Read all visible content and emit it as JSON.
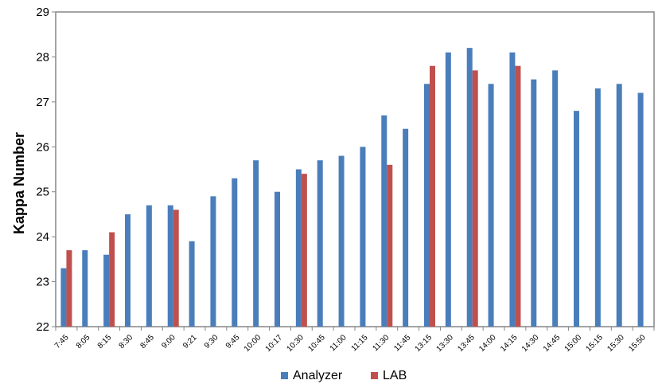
{
  "chart_data": {
    "type": "bar",
    "ylabel": "Kappa Number",
    "xlabel": "",
    "ylim": [
      22,
      29
    ],
    "yticks": [
      22,
      23,
      24,
      25,
      26,
      27,
      28,
      29
    ],
    "grid": false,
    "legend_position": "bottom",
    "categories": [
      "7:45",
      "8:05",
      "8:15",
      "8:30",
      "8:45",
      "9:00",
      "9:21",
      "9:30",
      "9:45",
      "10:00",
      "10:17",
      "10:30",
      "10:45",
      "11:00",
      "11:15",
      "11:30",
      "11:45",
      "13:15",
      "13:30",
      "13:45",
      "14:00",
      "14:15",
      "14:30",
      "14:45",
      "15:00",
      "15:15",
      "15:30",
      "15:50"
    ],
    "series": [
      {
        "name": "Analyzer",
        "color": "#4a7ebb",
        "values": [
          23.3,
          23.7,
          23.6,
          24.5,
          24.7,
          24.7,
          23.9,
          24.9,
          25.3,
          25.7,
          25.0,
          25.5,
          25.7,
          25.8,
          26.0,
          26.7,
          26.4,
          27.4,
          28.1,
          28.2,
          27.4,
          28.1,
          27.5,
          27.7,
          26.8,
          27.3,
          27.4,
          27.2
        ]
      },
      {
        "name": "LAB",
        "color": "#c0504d",
        "values": [
          23.7,
          null,
          24.1,
          null,
          null,
          24.6,
          null,
          null,
          null,
          null,
          null,
          25.4,
          null,
          null,
          null,
          25.6,
          null,
          27.8,
          null,
          27.7,
          null,
          27.8,
          null,
          null,
          null,
          null,
          null,
          null
        ]
      }
    ]
  }
}
